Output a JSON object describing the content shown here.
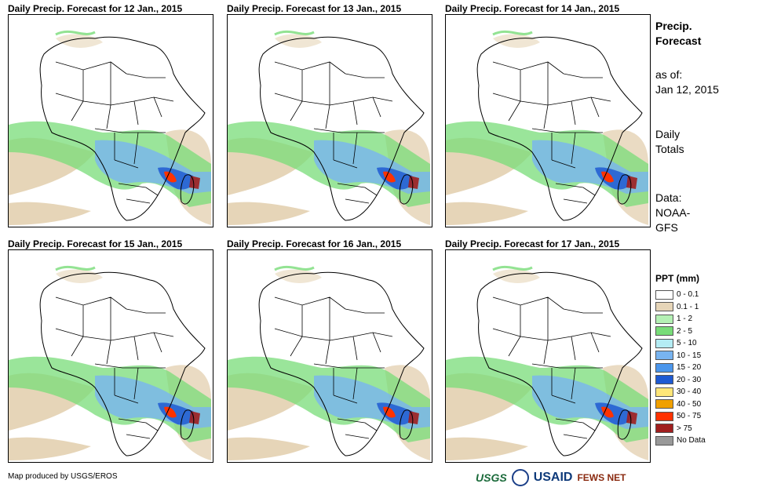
{
  "panels": [
    {
      "title": "Daily Precip. Forecast for 12 Jan., 2015"
    },
    {
      "title": "Daily Precip. Forecast for 13 Jan., 2015"
    },
    {
      "title": "Daily Precip. Forecast for 14 Jan., 2015"
    },
    {
      "title": "Daily Precip. Forecast for 15 Jan., 2015"
    },
    {
      "title": "Daily Precip. Forecast for 16 Jan., 2015"
    },
    {
      "title": "Daily Precip. Forecast for 17 Jan., 2015"
    }
  ],
  "sidebar": {
    "heading1": "Precip.",
    "heading2": "Forecast",
    "asof_label": "as of:",
    "asof_date": "Jan 12, 2015",
    "totals1": "Daily",
    "totals2": "Totals",
    "source1": "Data:",
    "source2": "NOAA-",
    "source3": "GFS"
  },
  "legend": {
    "title": "PPT (mm)",
    "items": [
      {
        "label": "0 - 0.1",
        "color": "#ffffff"
      },
      {
        "label": "0.1 - 1",
        "color": "#e6d5b8"
      },
      {
        "label": "1 - 2",
        "color": "#b4f0b4"
      },
      {
        "label": "2 - 5",
        "color": "#78dc78"
      },
      {
        "label": "5 - 10",
        "color": "#b4ecf4"
      },
      {
        "label": "10 - 15",
        "color": "#78b4f0"
      },
      {
        "label": "15 - 20",
        "color": "#4b96ec"
      },
      {
        "label": "20 - 30",
        "color": "#1e5ad2"
      },
      {
        "label": "30 - 40",
        "color": "#ffe678"
      },
      {
        "label": "40 - 50",
        "color": "#f0a000"
      },
      {
        "label": "50 - 75",
        "color": "#ff3200"
      },
      {
        "label": "> 75",
        "color": "#a01e1e"
      },
      {
        "label": "No Data",
        "color": "#999999"
      }
    ]
  },
  "footer": {
    "credit": "Map produced by USGS/EROS",
    "logo1": "USGS",
    "logo2": "USAID",
    "logo3": "FEWS NET"
  }
}
